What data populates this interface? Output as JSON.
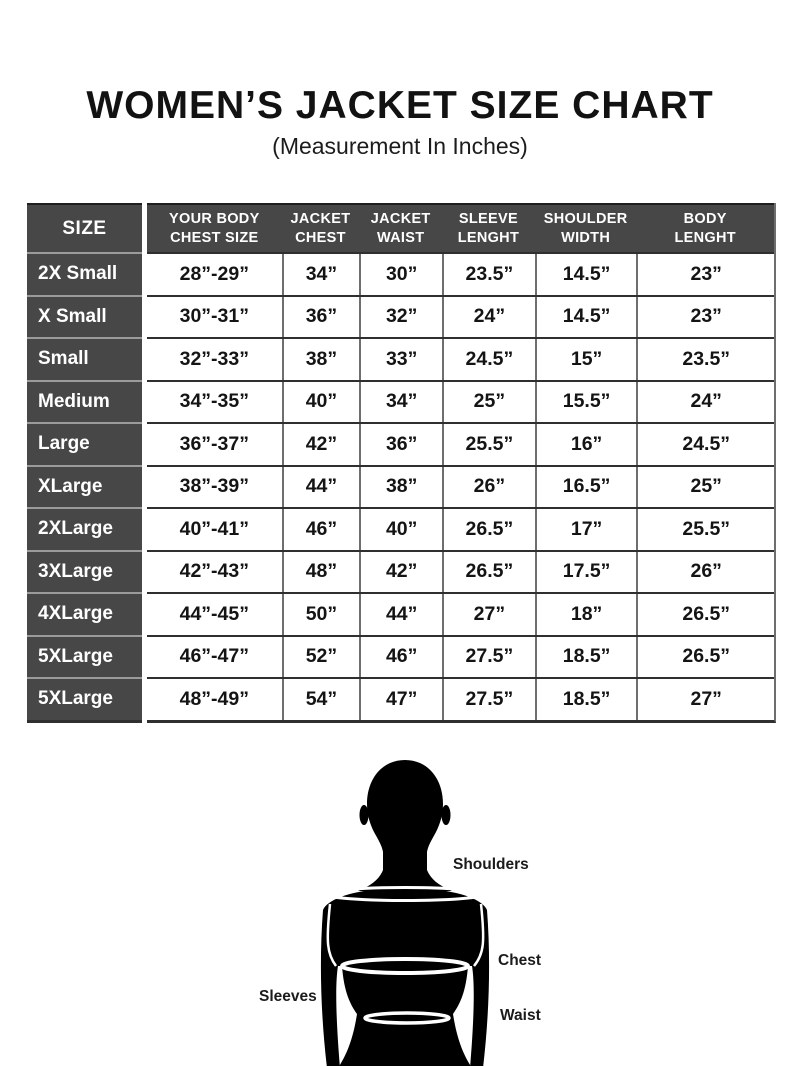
{
  "title": "WOMEN’S JACKET SIZE CHART",
  "subtitle": "(Measurement In Inches)",
  "table": {
    "size_header": "SIZE",
    "data_headers": [
      "YOUR BODY\nCHEST SIZE",
      "JACKET\nCHEST",
      "JACKET\nWAIST",
      "SLEEVE\nLENGHT",
      "SHOULDER\nWIDTH",
      "BODY\nLENGHT"
    ]
  },
  "chart_data": {
    "type": "table",
    "columns": [
      "SIZE",
      "YOUR BODY CHEST SIZE",
      "JACKET CHEST",
      "JACKET WAIST",
      "SLEEVE LENGHT",
      "SHOULDER WIDTH",
      "BODY LENGHT"
    ],
    "rows": [
      [
        "2X Small",
        "28”-29”",
        "34”",
        "30”",
        "23.5”",
        "14.5”",
        "23”"
      ],
      [
        "X Small",
        "30”-31”",
        "36”",
        "32”",
        "24”",
        "14.5”",
        "23”"
      ],
      [
        "Small",
        "32”-33”",
        "38”",
        "33”",
        "24.5”",
        "15”",
        "23.5”"
      ],
      [
        "Medium",
        "34”-35”",
        "40”",
        "34”",
        "25”",
        "15.5”",
        "24”"
      ],
      [
        "Large",
        "36”-37”",
        "42”",
        "36”",
        "25.5”",
        "16”",
        "24.5”"
      ],
      [
        "XLarge",
        "38”-39”",
        "44”",
        "38”",
        "26”",
        "16.5”",
        "25”"
      ],
      [
        "2XLarge",
        "40”-41”",
        "46”",
        "40”",
        "26.5”",
        "17”",
        "25.5”"
      ],
      [
        "3XLarge",
        "42”-43”",
        "48”",
        "42”",
        "26.5”",
        "17.5”",
        "26”"
      ],
      [
        "4XLarge",
        "44”-45”",
        "50”",
        "44”",
        "27”",
        "18”",
        "26.5”"
      ],
      [
        "5XLarge",
        "46”-47”",
        "52”",
        "46”",
        "27.5”",
        "18.5”",
        "26.5”"
      ],
      [
        "5XLarge",
        "48”-49”",
        "54”",
        "47”",
        "27.5”",
        "18.5”",
        "27”"
      ]
    ]
  },
  "diagram": {
    "labels": {
      "shoulders": "Shoulders",
      "chest": "Chest",
      "sleeves": "Sleeves",
      "waist": "Waist"
    }
  },
  "colors": {
    "background": "#ffffff",
    "header_bg": "#474747",
    "grid_vertical": "#6e6e6e",
    "grid_horizontal": "#2f2f2f",
    "size_row_divider": "#9b9b9b",
    "text_light": "#ffffff",
    "text_dark": "#141414",
    "silhouette": "#000000"
  }
}
